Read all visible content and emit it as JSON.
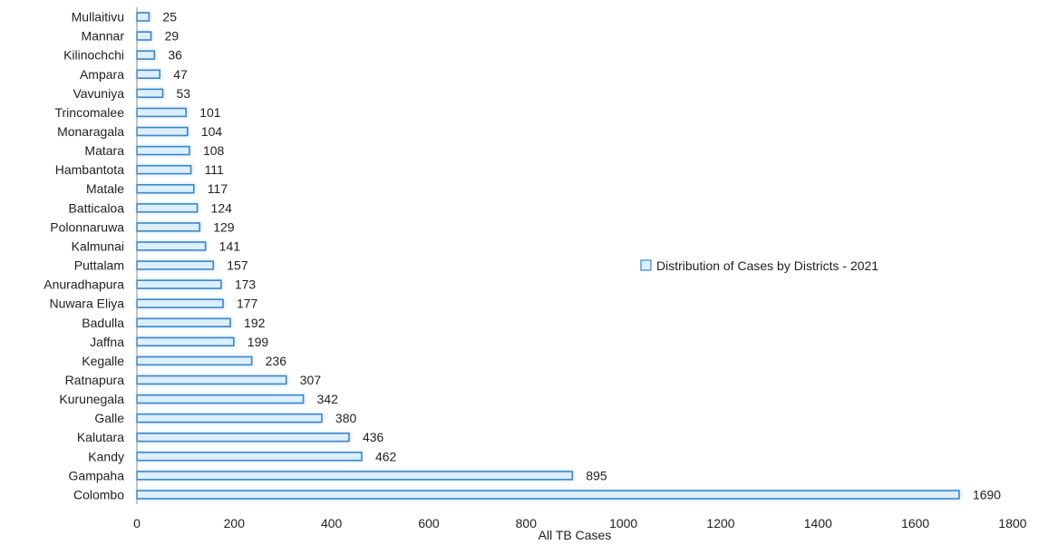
{
  "chart_data": {
    "type": "bar",
    "orientation": "horizontal",
    "categories": [
      "Mullaitivu",
      "Mannar",
      "Kilinochchi",
      "Ampara",
      "Vavuniya",
      "Trincomalee",
      "Monaragala",
      "Matara",
      "Hambantota",
      "Matale",
      "Batticaloa",
      "Polonnaruwa",
      "Kalmunai",
      "Puttalam",
      "Anuradhapura",
      "Nuwara Eliya",
      "Badulla",
      "Jaffna",
      "Kegalle",
      "Ratnapura",
      "Kurunegala",
      "Galle",
      "Kalutara",
      "Kandy",
      "Gampaha",
      "Colombo"
    ],
    "series": [
      {
        "name": "Distribution of Cases by Districts - 2021",
        "values": [
          25,
          29,
          36,
          47,
          53,
          101,
          104,
          108,
          111,
          117,
          124,
          129,
          141,
          157,
          173,
          177,
          192,
          199,
          236,
          307,
          342,
          380,
          436,
          462,
          895,
          1690
        ]
      }
    ],
    "xlabel": "All TB Cases",
    "ylabel": "",
    "xlim": [
      0,
      1800
    ],
    "xticks": [
      0,
      200,
      400,
      600,
      800,
      1000,
      1200,
      1400,
      1600,
      1800
    ],
    "grid": false,
    "legend_position": "right",
    "colors": {
      "bar_fill": "#dcefff",
      "bar_stroke": "#3d86c6",
      "bar_glow": "#bfe3ff",
      "axis": "#8c8c8c"
    }
  }
}
